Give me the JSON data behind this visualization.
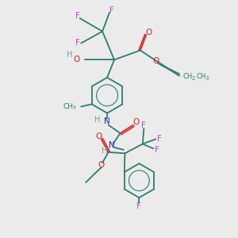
{
  "bg_color": "#ebebeb",
  "bond_color": "#2d7d6e",
  "F_color": "#cc44cc",
  "O_color": "#dd2222",
  "N_color": "#2222bb",
  "H_color": "#7a9a9a",
  "font_size": 7.5,
  "fig_width": 3.0,
  "fig_height": 3.0,
  "dpi": 100,
  "xlim": [
    0,
    10
  ],
  "ylim": [
    0,
    10
  ]
}
